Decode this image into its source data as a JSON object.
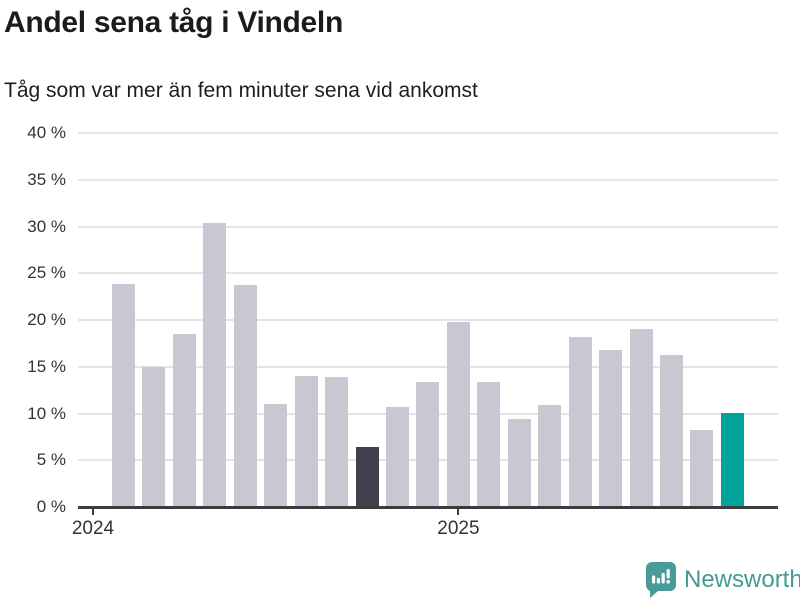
{
  "header": {
    "title": "Andel sena tåg i Vindeln",
    "subtitle": "Tåg som var mer än fem minuter sena vid ankomst"
  },
  "chart_data": {
    "type": "bar",
    "title": "Andel sena tåg i Vindeln",
    "subtitle": "Tåg som var mer än fem minuter sena vid ankomst",
    "unit": "%",
    "categories": [
      "2024-02",
      "2024-03",
      "2024-04",
      "2024-05",
      "2024-06",
      "2024-07",
      "2024-08",
      "2024-09",
      "2024-10",
      "2024-11",
      "2024-12",
      "2025-01",
      "2025-02",
      "2025-03",
      "2025-04",
      "2025-05",
      "2025-06",
      "2025-07",
      "2025-08",
      "2025-09",
      "2025-10"
    ],
    "values": [
      23.9,
      15.0,
      18.5,
      30.4,
      23.7,
      11.0,
      14.0,
      13.9,
      6.4,
      10.7,
      13.4,
      19.8,
      13.4,
      9.4,
      10.9,
      18.2,
      16.8,
      19.0,
      16.3,
      8.2,
      10.1
    ],
    "highlight_previous_year_index": 8,
    "highlight_latest_index": 20,
    "colors": {
      "bar_default": "#c9c7d1",
      "bar_previous_year": "#43404d",
      "bar_latest": "#00a39a",
      "axis": "#3c3c3c",
      "gridline": "#e4e4e6"
    },
    "y_axis": {
      "min": 0,
      "max": 40,
      "tick_step": 5,
      "tick_labels": [
        "0 %",
        "5 %",
        "10 %",
        "15 %",
        "20 %",
        "25 %",
        "30 %",
        "35 %",
        "40 %"
      ]
    },
    "x_axis": {
      "ticks": [
        {
          "label": "2024",
          "month_index": -1
        },
        {
          "label": "2025",
          "month_index": 11
        }
      ]
    },
    "grid": true,
    "legend": false
  },
  "branding": {
    "name": "Newsworthy",
    "text_color": "#459a96",
    "icon_color": "#4a9b98",
    "icon": "newsworthy-speech-bubble-bar-chart-icon"
  }
}
